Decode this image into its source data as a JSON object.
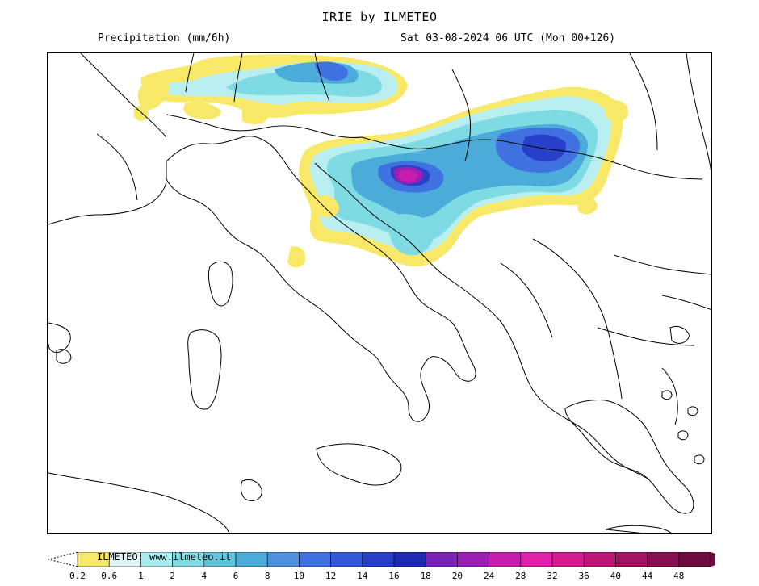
{
  "header": {
    "title": "IRIE by ILMETEO",
    "variable": "Precipitation (mm/6h)",
    "valid_time": "Sat 03-08-2024 06 UTC (Mon 00+126)"
  },
  "legend": {
    "credit": "ILMETEO: www.ilmeteo.it",
    "ticks": [
      "0.2",
      "0.6",
      "1",
      "2",
      "4",
      "6",
      "8",
      "10",
      "12",
      "14",
      "16",
      "18",
      "20",
      "24",
      "28",
      "32",
      "36",
      "40",
      "44",
      "48"
    ],
    "colors": [
      "#f7e967",
      "#dff5f5",
      "#a7ecee",
      "#7fdbe3",
      "#5ec6dc",
      "#4bacd9",
      "#4b91e0",
      "#3f72e0",
      "#3357d9",
      "#2840c9",
      "#1e2ab3",
      "#7a22b8",
      "#9c1eb4",
      "#c81eb0",
      "#e220ac",
      "#d61a90",
      "#bc1677",
      "#a21463",
      "#880f50",
      "#6f0b3f"
    ]
  },
  "map": {
    "region": "Central Mediterranean / Italy and Balkans",
    "precip_colors": {
      "yellow": "#f7e967",
      "light_cyan": "#b8eef0",
      "cyan": "#7fdbe3",
      "mid_blue": "#4bacd9",
      "blue": "#3f72e0",
      "dark_blue": "#2840c9",
      "magenta": "#c81eb0",
      "deep_magenta": "#9c1eb4"
    }
  }
}
